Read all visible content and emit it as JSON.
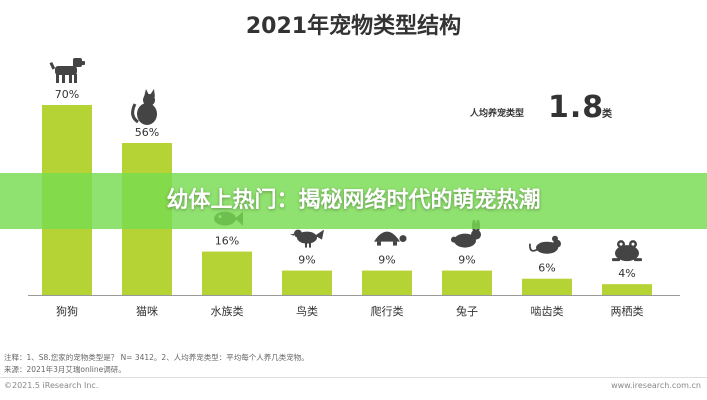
{
  "chart_data": {
    "type": "bar",
    "title": "2021年宠物类型结构",
    "categories": [
      "狗狗",
      "猫咪",
      "水族类",
      "鸟类",
      "爬行类",
      "兔子",
      "啮齿类",
      "两栖类"
    ],
    "values": [
      70,
      56,
      16,
      9,
      9,
      9,
      6,
      4
    ],
    "value_labels": [
      "70%",
      "56%",
      "16%",
      "9%",
      "9%",
      "9%",
      "6%",
      "4%"
    ],
    "icons": [
      "dog-icon",
      "cat-icon",
      "fish-icon",
      "bird-icon",
      "turtle-icon",
      "rabbit-icon",
      "mouse-icon",
      "frog-icon"
    ],
    "ylim": [
      0,
      70
    ],
    "bar_color": "#b5d334",
    "grid": false
  },
  "average": {
    "label": "人均养宠类型",
    "value": "1.8",
    "unit": "类"
  },
  "banner": {
    "text": "幼体上热门：揭秘网络时代的萌宠热潮"
  },
  "notes": {
    "line1": "注释：1、S8.您家的宠物类型是？ N= 3412。2、人均养宠类型：平均每个人养几类宠物。",
    "line2": "来源：2021年3月艾瑞online调研。"
  },
  "footer": {
    "copyright": "©2021.5 iResearch Inc.",
    "website": "www.iresearch.com.cn"
  },
  "colors": {
    "bar": "#b5d334",
    "banner": "#78dc50",
    "icon": "#444444"
  }
}
